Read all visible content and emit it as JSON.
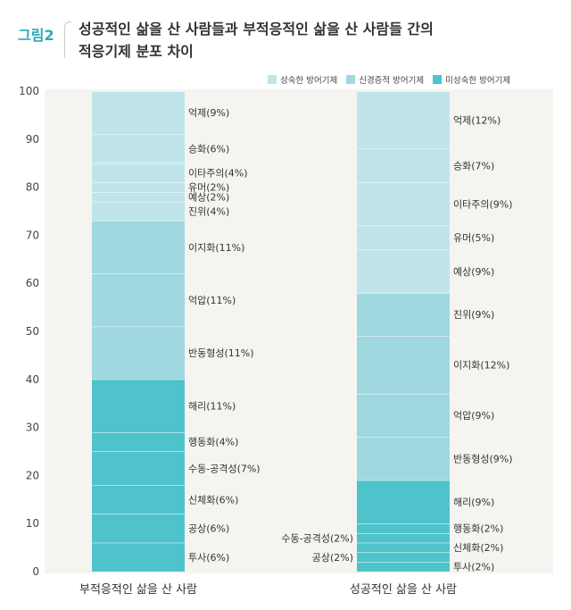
{
  "figure": {
    "label": "그림2",
    "title_line1": "성공적인 삶을 산 사람들과 부적응적인 삶을 산 사람들 간의",
    "title_line2": "적응기제 분포 차이"
  },
  "chart_data": {
    "type": "bar",
    "stacked": true,
    "ylim": [
      0,
      100
    ],
    "yticks": [
      0,
      10,
      20,
      30,
      40,
      50,
      60,
      70,
      80,
      90,
      100
    ],
    "colors": {
      "성숙한 방어기제": "#bfe5ea",
      "신경증적 방어기제": "#9fd8df",
      "미성숙한 방어기제": "#4ec3cc"
    },
    "legend": [
      {
        "name": "성숙한 방어기제",
        "color": "#bfe5ea"
      },
      {
        "name": "신경증적 방어기제",
        "color": "#9fd8df"
      },
      {
        "name": "미성숙한 방어기제",
        "color": "#4ec3cc"
      }
    ],
    "categories": [
      "부적응적인 삶을 산 사람",
      "성공적인 삶을 산 사람"
    ],
    "bars": [
      {
        "category": "부적응적인 삶을 산 사람",
        "segments": [
          {
            "label": "투사(6%)",
            "value": 6,
            "group": "미성숙한 방어기제"
          },
          {
            "label": "공상(6%)",
            "value": 6,
            "group": "미성숙한 방어기제"
          },
          {
            "label": "신체화(6%)",
            "value": 6,
            "group": "미성숙한 방어기제"
          },
          {
            "label": "수동-공격성(7%)",
            "value": 7,
            "group": "미성숙한 방어기제"
          },
          {
            "label": "행동화(4%)",
            "value": 4,
            "group": "미성숙한 방어기제"
          },
          {
            "label": "해리(11%)",
            "value": 11,
            "group": "미성숙한 방어기제"
          },
          {
            "label": "반동형성(11%)",
            "value": 11,
            "group": "신경증적 방어기제"
          },
          {
            "label": "억압(11%)",
            "value": 11,
            "group": "신경증적 방어기제"
          },
          {
            "label": "이지화(11%)",
            "value": 11,
            "group": "신경증적 방어기제"
          },
          {
            "label": "진위(4%)",
            "value": 4,
            "group": "성숙한 방어기제"
          },
          {
            "label": "예상(2%)",
            "value": 2,
            "group": "성숙한 방어기제"
          },
          {
            "label": "유머(2%)",
            "value": 2,
            "group": "성숙한 방어기제"
          },
          {
            "label": "이타주의(4%)",
            "value": 4,
            "group": "성숙한 방어기제"
          },
          {
            "label": "승화(6%)",
            "value": 6,
            "group": "성숙한 방어기제"
          },
          {
            "label": "억제(9%)",
            "value": 9,
            "group": "성숙한 방어기제"
          }
        ]
      },
      {
        "category": "성공적인 삶을 산 사람",
        "segments": [
          {
            "label": "투사(2%)",
            "value": 2,
            "group": "미성숙한 방어기제"
          },
          {
            "label": "공상(2%)",
            "value": 2,
            "group": "미성숙한 방어기제",
            "label_side": "left"
          },
          {
            "label": "신체화(2%)",
            "value": 2,
            "group": "미성숙한 방어기제"
          },
          {
            "label": "수동-공격성(2%)",
            "value": 2,
            "group": "미성숙한 방어기제",
            "label_side": "left"
          },
          {
            "label": "행동화(2%)",
            "value": 2,
            "group": "미성숙한 방어기제"
          },
          {
            "label": "해리(9%)",
            "value": 9,
            "group": "미성숙한 방어기제"
          },
          {
            "label": "반동형성(9%)",
            "value": 9,
            "group": "신경증적 방어기제"
          },
          {
            "label": "억압(9%)",
            "value": 9,
            "group": "신경증적 방어기제"
          },
          {
            "label": "이지화(12%)",
            "value": 12,
            "group": "신경증적 방어기제"
          },
          {
            "label": "진위(9%)",
            "value": 9,
            "group": "신경증적 방어기제"
          },
          {
            "label": "예상(9%)",
            "value": 9,
            "group": "성숙한 방어기제"
          },
          {
            "label": "유머(5%)",
            "value": 5,
            "group": "성숙한 방어기제"
          },
          {
            "label": "이타주의(9%)",
            "value": 9,
            "group": "성숙한 방어기제"
          },
          {
            "label": "승화(7%)",
            "value": 7,
            "group": "성숙한 방어기제"
          },
          {
            "label": "억제(12%)",
            "value": 12,
            "group": "성숙한 방어기제"
          }
        ]
      }
    ]
  }
}
